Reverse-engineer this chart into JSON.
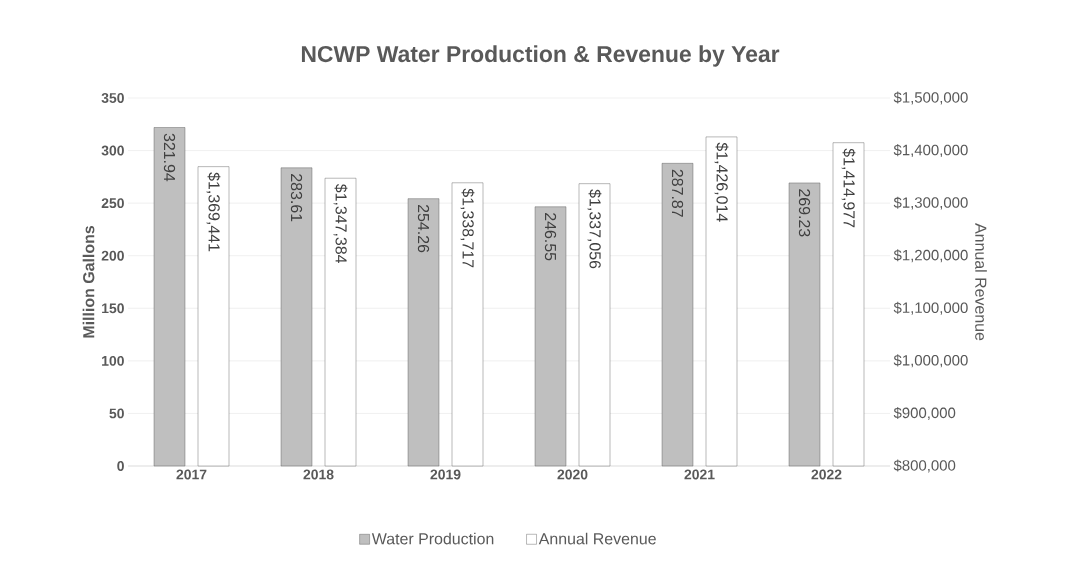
{
  "chart_data": {
    "type": "bar",
    "title": "NCWP Water Production & Revenue by Year",
    "categories": [
      "2017",
      "2018",
      "2019",
      "2020",
      "2021",
      "2022"
    ],
    "series": [
      {
        "name": "Water Production",
        "color": "#bfbfbf",
        "values": [
          321.94,
          283.61,
          254.26,
          246.55,
          287.87,
          269.23
        ],
        "value_labels": [
          "321.94",
          "283.61",
          "254.26",
          "246.55",
          "287.87",
          "269.23"
        ]
      },
      {
        "name": "Annual Revenue",
        "color": "#ffffff",
        "axis": "y2",
        "values": [
          1369441,
          1347384,
          1338717,
          1337056,
          1426014,
          1414977
        ],
        "value_labels": [
          "$1,369,441",
          "$1,347,384",
          "$1,338,717",
          "$1,337,056",
          "$1,426,014",
          "$1,414,977"
        ]
      }
    ],
    "ylabel": "Million Gallons",
    "y2label": "Annual Revenue",
    "ylim": [
      0,
      350
    ],
    "yticks": [
      0,
      50,
      100,
      150,
      200,
      250,
      300,
      350
    ],
    "y2lim": [
      800000,
      1500000
    ],
    "y2ticks": [
      {
        "value": 800000,
        "label": "$800,000"
      },
      {
        "value": 900000,
        "label": "$900,000"
      },
      {
        "value": 1000000,
        "label": "$1,000,000"
      },
      {
        "value": 1100000,
        "label": "$1,100,000"
      },
      {
        "value": 1200000,
        "label": "$1,200,000"
      },
      {
        "value": 1300000,
        "label": "$1,300,000"
      },
      {
        "value": 1400000,
        "label": "$1,400,000"
      },
      {
        "value": 1500000,
        "label": "$1,500,000"
      }
    ],
    "grid": "y",
    "legend": "bottom"
  }
}
